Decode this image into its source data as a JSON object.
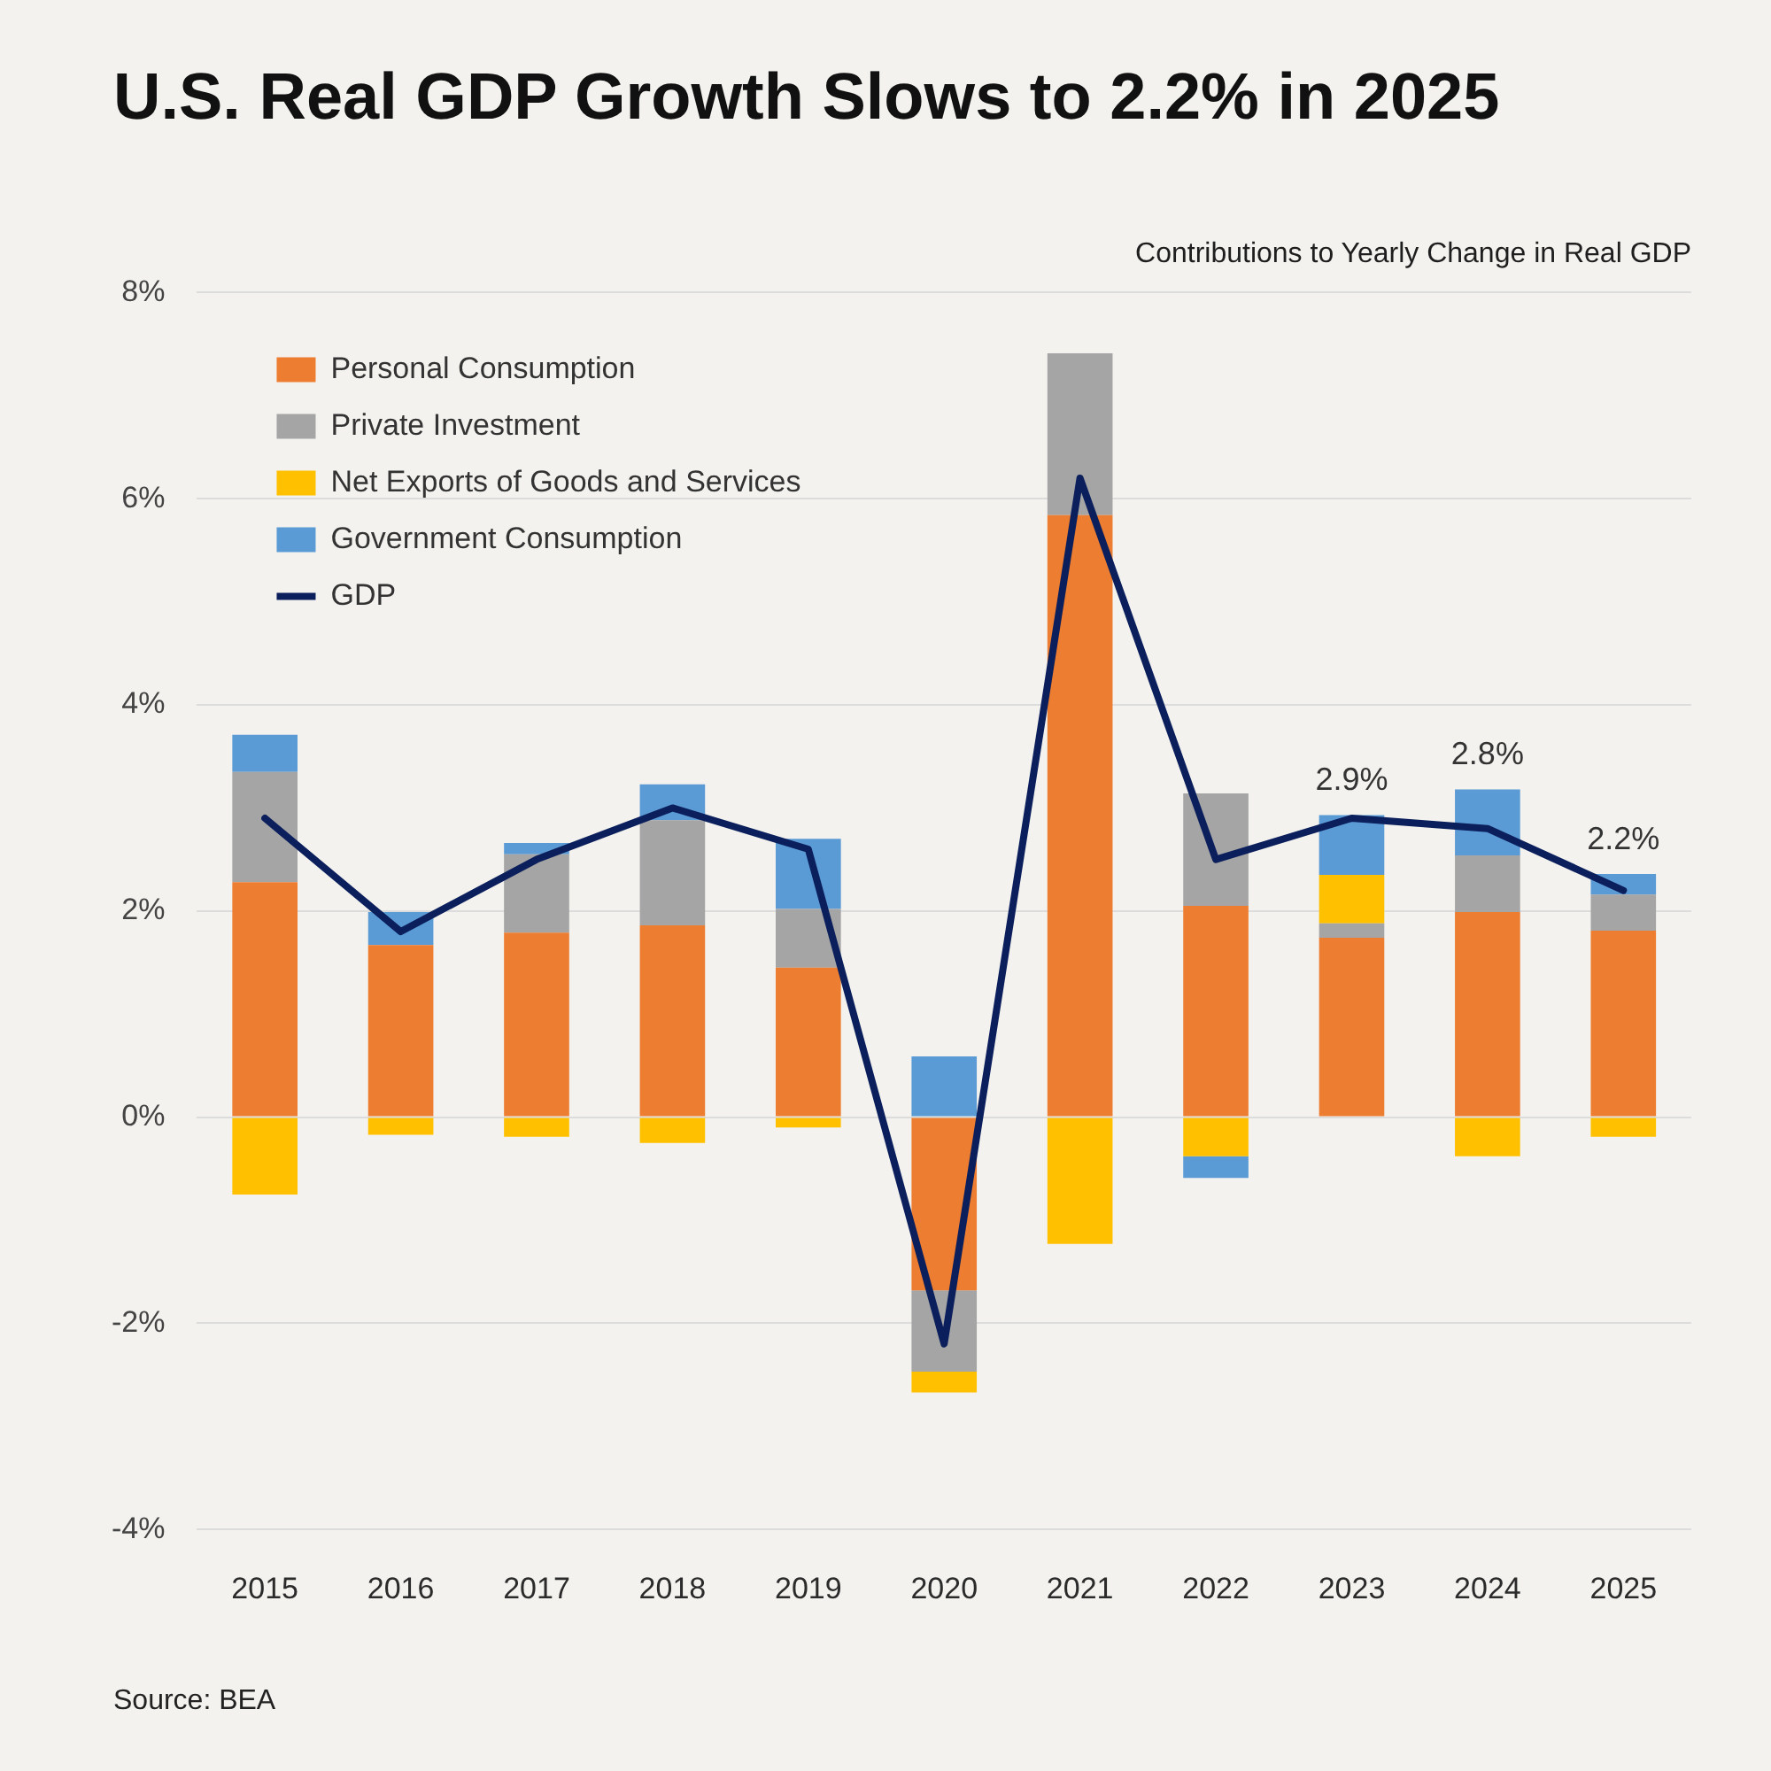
{
  "chart_data": {
    "type": "bar",
    "title": "U.S. Real GDP Growth Slows to 2.2% in 2025",
    "subtitle": "Contributions to Yearly Change in Real GDP",
    "categories": [
      "2015",
      "2016",
      "2017",
      "2018",
      "2019",
      "2020",
      "2021",
      "2022",
      "2023",
      "2024",
      "2025"
    ],
    "stacked": true,
    "series": [
      {
        "name": "Personal Consumption",
        "color": "#ed7d31",
        "values": [
          2.28,
          1.67,
          1.79,
          1.86,
          1.45,
          -1.68,
          5.84,
          2.05,
          1.74,
          1.99,
          1.81
        ]
      },
      {
        "name": "Private Investment",
        "color": "#a5a5a5",
        "values": [
          1.07,
          null,
          0.76,
          1.02,
          0.57,
          -0.79,
          1.57,
          1.09,
          0.14,
          0.55,
          0.35
        ]
      },
      {
        "name": "Net Exports of Goods and Services",
        "color": "#ffc000",
        "values": [
          -0.75,
          -0.17,
          -0.19,
          -0.25,
          -0.1,
          -0.2,
          -1.23,
          -0.38,
          0.47,
          -0.38,
          -0.19
        ]
      },
      {
        "name": "Government Consumption",
        "color": "#5b9bd5",
        "values": [
          0.36,
          0.32,
          0.11,
          0.35,
          0.68,
          0.59,
          null,
          -0.21,
          0.58,
          0.64,
          0.2
        ]
      },
      {
        "name": "GDP",
        "type": "line",
        "color": "#0b1f5c",
        "values": [
          2.9,
          1.8,
          2.5,
          3.0,
          2.6,
          -2.2,
          6.2,
          2.5,
          2.9,
          2.8,
          2.2
        ],
        "value_labels": [
          null,
          null,
          null,
          null,
          null,
          null,
          null,
          null,
          "2.9%",
          "2.8%",
          "2.2%"
        ]
      }
    ],
    "ylim": [
      -4,
      8
    ],
    "yticks": [
      {
        "value": -4,
        "label": "-4%"
      },
      {
        "value": -2,
        "label": "-2%"
      },
      {
        "value": 0,
        "label": "0%"
      },
      {
        "value": 2,
        "label": "2%"
      },
      {
        "value": 4,
        "label": "4%"
      },
      {
        "value": 6,
        "label": "6%"
      },
      {
        "value": 8,
        "label": "8%"
      }
    ],
    "grid": "y",
    "legend": "top left",
    "marker": "none",
    "line_style": "solid",
    "annotations": [
      "Source: BEA"
    ]
  }
}
